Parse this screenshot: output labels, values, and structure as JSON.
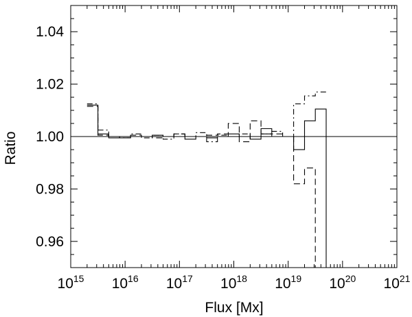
{
  "chart_data": {
    "type": "line",
    "title": "",
    "xlabel": "Flux [Mx]",
    "ylabel": "Ratio",
    "x_scale": "log",
    "xlim": [
      1000000000000000.0,
      1e+21
    ],
    "ylim": [
      0.95,
      1.05
    ],
    "x_ticks": [
      {
        "base": "10",
        "exp": "15",
        "value": 1000000000000000.0
      },
      {
        "base": "10",
        "exp": "16",
        "value": 1e+16
      },
      {
        "base": "10",
        "exp": "17",
        "value": 1e+17
      },
      {
        "base": "10",
        "exp": "18",
        "value": 1e+18
      },
      {
        "base": "10",
        "exp": "19",
        "value": 1e+19
      },
      {
        "base": "10",
        "exp": "20",
        "value": 1e+20
      },
      {
        "base": "10",
        "exp": "21",
        "value": 1e+21
      }
    ],
    "y_ticks": [
      {
        "label": "0.96",
        "value": 0.96
      },
      {
        "label": "0.98",
        "value": 0.98
      },
      {
        "label": "1.00",
        "value": 1.0
      },
      {
        "label": "1.02",
        "value": 1.02
      },
      {
        "label": "1.04",
        "value": 1.04
      }
    ],
    "reference_line": 1.0,
    "grid": false,
    "bin_edges": [
      2000000000000000.0,
      3160000000000000.0,
      5000000000000000.0,
      7900000000000000.0,
      1.26e+16,
      2e+16,
      3.16e+16,
      5e+16,
      7.9e+16,
      1.26e+17,
      2e+17,
      3.16e+17,
      5e+17,
      7.9e+17,
      1.26e+18,
      2e+18,
      3.16e+18,
      5e+18,
      7.9e+18,
      1.26e+19,
      2e+19,
      3.16e+19,
      5e+19
    ],
    "series": [
      {
        "style": "solid",
        "values": [
          1.012,
          1.001,
          0.9995,
          0.9995,
          1.0,
          1.0,
          1.0005,
          1.0,
          1.0,
          0.999,
          1.0,
          0.9995,
          1.0,
          1.001,
          1.0,
          0.999,
          1.003,
          1.0,
          1.0,
          0.995,
          1.006,
          1.0105
        ]
      },
      {
        "style": "dashed",
        "values": [
          1.0115,
          1.0005,
          1.0,
          0.9995,
          1.0005,
          1.0,
          0.9995,
          1.0,
          1.001,
          1.0,
          1.0,
          1.0005,
          1.001,
          1.005,
          0.998,
          1.006,
          1.001,
          1.001,
          1.0,
          0.982,
          0.988,
          0.95
        ]
      },
      {
        "style": "dash-dot",
        "values": [
          1.0125,
          1.0025,
          1.0,
          0.9995,
          1.001,
          0.9995,
          1.0005,
          0.999,
          1.001,
          1.0,
          1.0015,
          0.998,
          1.0005,
          1.0,
          1.001,
          1.0,
          1.001,
          1.002,
          1.0,
          1.0125,
          1.0155,
          1.017
        ]
      }
    ]
  }
}
